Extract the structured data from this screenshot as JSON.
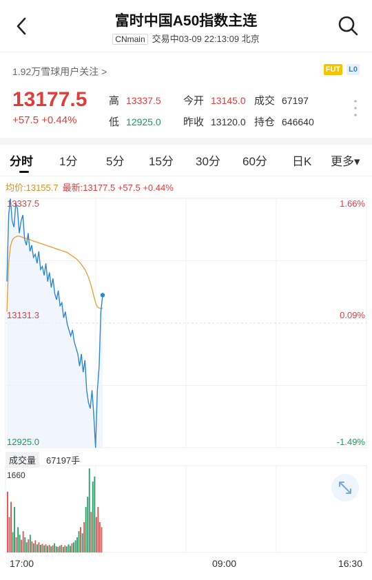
{
  "nav": {
    "title": "富时中国A50指数主连",
    "tag": "CNmain",
    "status": "交易中03-09 22:13:09 北京"
  },
  "follow_text": "1.92万雪球用户关注 >",
  "badges": [
    "FUT",
    "L0"
  ],
  "quote": {
    "price": "13177.5",
    "change": "+57.5 +0.44%",
    "high_label": "高",
    "high": "13337.5",
    "low_label": "低",
    "low": "12925.0",
    "open_label": "今开",
    "open": "13145.0",
    "prev_label": "昨收",
    "prev": "13120.0",
    "volume_label": "成交",
    "volume": "67197",
    "oi_label": "持仓",
    "oi": "646640"
  },
  "tabs": [
    "分时",
    "1分",
    "5分",
    "15分",
    "30分",
    "60分",
    "日K",
    "更多▾"
  ],
  "legend": {
    "avg": "均价:13155.7",
    "last": "最新:13177.5 +57.5 +0.44%"
  },
  "axis": {
    "y_top": "13337.5",
    "y_mid": "13131.3",
    "y_bot": "12925.0",
    "pct_top": "1.66%",
    "pct_mid": "0.09%",
    "pct_bot": "-1.49%",
    "x_start": "17:00",
    "x_mid": "09:00",
    "x_end": "16:30"
  },
  "volume": {
    "label": "成交量",
    "total": "67197手",
    "max": "1660"
  },
  "chart_data": {
    "type": "line",
    "ylim": [
      12925.0,
      13337.5
    ],
    "reference": 13131.3,
    "series": [
      {
        "name": "最新",
        "color": "#2b86d8",
        "values": [
          13200,
          13310,
          13337,
          13300,
          13290,
          13330,
          13320,
          13280,
          13300,
          13310,
          13270,
          13260,
          13280,
          13250,
          13260,
          13240,
          13245,
          13230,
          13250,
          13220,
          13225,
          13210,
          13230,
          13200,
          13215,
          13190,
          13205,
          13180,
          13170,
          13185,
          13160,
          13165,
          13140,
          13150,
          13130,
          13120,
          13110,
          13120,
          13100,
          13090,
          13080,
          13060,
          13080,
          13050,
          13070,
          13020,
          13000,
          12990,
          13020,
          12980,
          12925,
          13020,
          13060,
          13150,
          13177.5
        ]
      },
      {
        "name": "均价",
        "color": "#e8a33a",
        "values": [
          13150,
          13230,
          13258,
          13268,
          13272,
          13274,
          13275,
          13275,
          13274,
          13273,
          13272,
          13271,
          13270,
          13269,
          13268,
          13267,
          13266,
          13265,
          13264,
          13263,
          13262,
          13261,
          13260,
          13259,
          13258,
          13257,
          13256,
          13255,
          13254,
          13253,
          13252,
          13251,
          13250,
          13249,
          13248,
          13246,
          13244,
          13242,
          13240,
          13238,
          13235,
          13232,
          13228,
          13224,
          13220,
          13214,
          13207,
          13198,
          13188,
          13176,
          13165,
          13158,
          13156,
          13155.8,
          13155.7
        ]
      }
    ],
    "volume_max": 1660,
    "volumes": [
      1200,
      700,
      1000,
      400,
      900,
      300,
      500,
      350,
      250,
      420,
      300,
      200,
      260,
      350,
      220,
      180,
      240,
      160,
      200,
      150,
      170,
      140,
      160,
      130,
      150,
      120,
      140,
      180,
      120,
      110,
      130,
      150,
      110,
      140,
      120,
      160,
      130,
      180,
      200,
      240,
      300,
      420,
      500,
      380,
      600,
      900,
      1100,
      1660,
      800,
      1400,
      1500,
      700,
      900,
      600,
      500
    ]
  }
}
